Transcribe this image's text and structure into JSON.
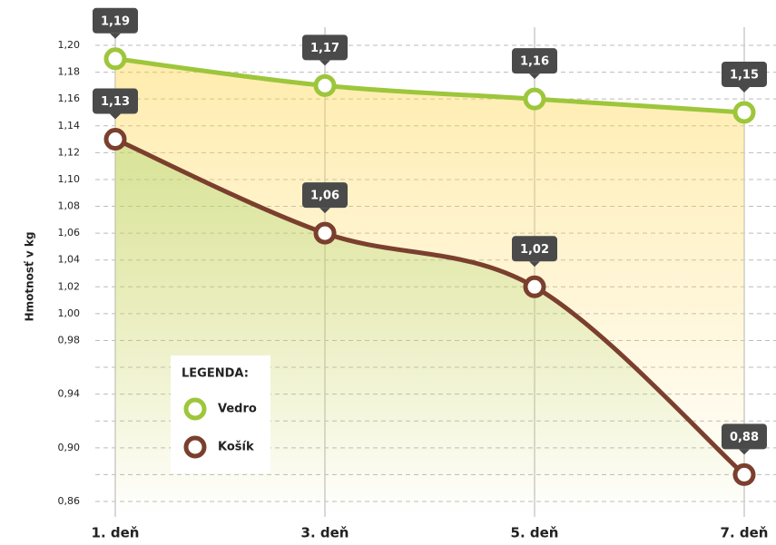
{
  "chart_data": {
    "type": "line",
    "y_label": "Hmotnosť v kg",
    "categories": [
      "1. deň",
      "3. deň",
      "5. deň",
      "7. deň"
    ],
    "series": [
      {
        "name": "Vedro",
        "color": "#9dc63b",
        "area_color": "#ffd54a",
        "values": [
          1.19,
          1.17,
          1.16,
          1.15
        ],
        "value_labels": [
          "1,19",
          "1,17",
          "1,16",
          "1,15"
        ]
      },
      {
        "name": "Košík",
        "color": "#7b3f2e",
        "area_color": "#a8d36a",
        "values": [
          1.13,
          1.06,
          1.02,
          0.88
        ],
        "value_labels": [
          "1,13",
          "1,06",
          "1,02",
          "0,88"
        ]
      }
    ],
    "ylim": [
      0.85,
      1.21
    ],
    "yticks": [
      {
        "value": 0.86,
        "label": "0,86"
      },
      {
        "value": 0.88,
        "label": null
      },
      {
        "value": 0.9,
        "label": "0,90"
      },
      {
        "value": 0.92,
        "label": null
      },
      {
        "value": 0.94,
        "label": "0,94"
      },
      {
        "value": 0.96,
        "label": null
      },
      {
        "value": 0.98,
        "label": "0,98"
      },
      {
        "value": 1.0,
        "label": "1,00"
      },
      {
        "value": 1.02,
        "label": "1,02"
      },
      {
        "value": 1.04,
        "label": "1,04"
      },
      {
        "value": 1.06,
        "label": "1,06"
      },
      {
        "value": 1.08,
        "label": "1,08"
      },
      {
        "value": 1.1,
        "label": "1,10"
      },
      {
        "value": 1.12,
        "label": "1,12"
      },
      {
        "value": 1.14,
        "label": "1,14"
      },
      {
        "value": 1.16,
        "label": "1,16"
      },
      {
        "value": 1.18,
        "label": "1,18"
      },
      {
        "value": 1.2,
        "label": "1,20"
      }
    ],
    "grid": true,
    "legend_title": "LEGENDA:",
    "legend": "bottom-left"
  }
}
